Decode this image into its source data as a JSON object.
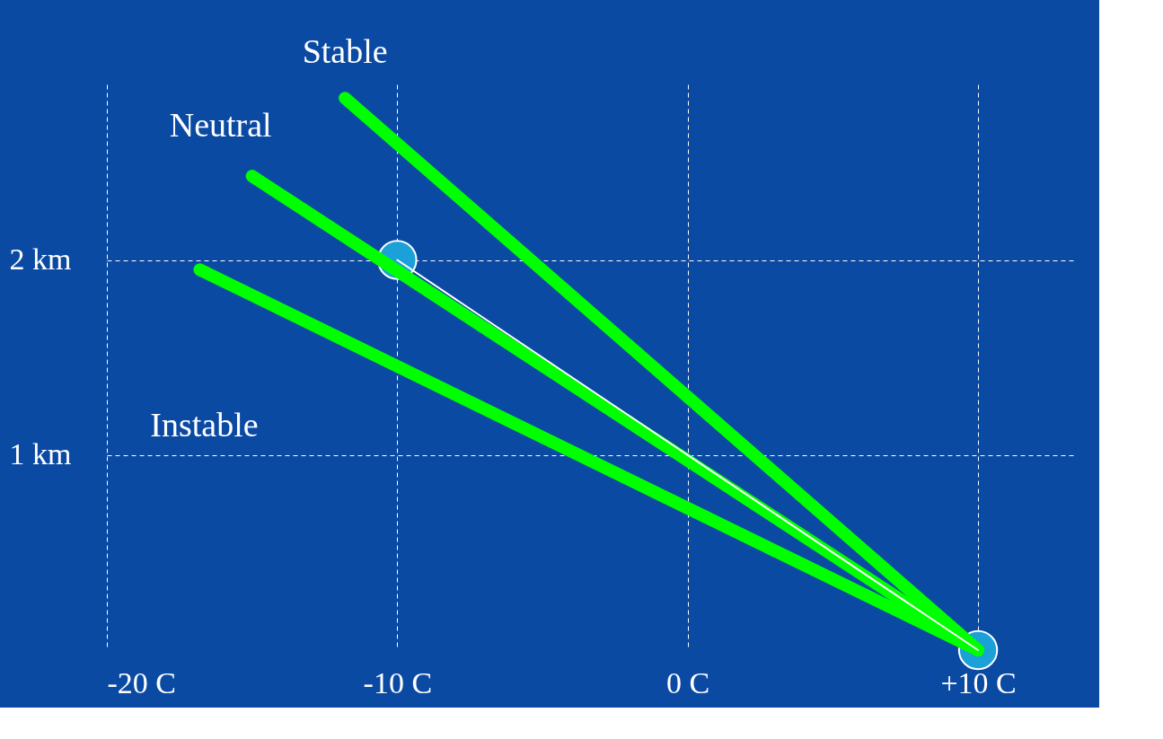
{
  "chart_data": {
    "type": "line",
    "xlim": [
      -20,
      13.4
    ],
    "ylim": [
      0,
      2.9
    ],
    "xticks": [
      {
        "value": -20,
        "label": "-20 C"
      },
      {
        "value": -10,
        "label": "-10 C"
      },
      {
        "value": 0,
        "label": "0 C"
      },
      {
        "value": 10,
        "label": "+10 C"
      }
    ],
    "yticks": [
      {
        "value": 1,
        "label": "1 km"
      },
      {
        "value": 2,
        "label": "2 km"
      }
    ],
    "grid": true,
    "line_style": "solid",
    "series": [
      {
        "name": "Stable",
        "color": "#00ff00",
        "x": [
          10,
          -11.8
        ],
        "values": [
          0,
          2.83
        ]
      },
      {
        "name": "Neutral",
        "color": "#00ff00",
        "x": [
          10,
          -15.0
        ],
        "values": [
          0,
          2.43
        ]
      },
      {
        "name": "Instable",
        "color": "#00ff00",
        "x": [
          10,
          -16.8
        ],
        "values": [
          0,
          1.95
        ]
      },
      {
        "color": "#ffffff",
        "x": [
          10,
          -10
        ],
        "values": [
          0,
          2
        ]
      },
      {
        "type": "scatter",
        "color": "#1ba0d8",
        "marker": "circle",
        "x": [
          -10,
          10
        ],
        "values": [
          2,
          0
        ]
      }
    ]
  }
}
